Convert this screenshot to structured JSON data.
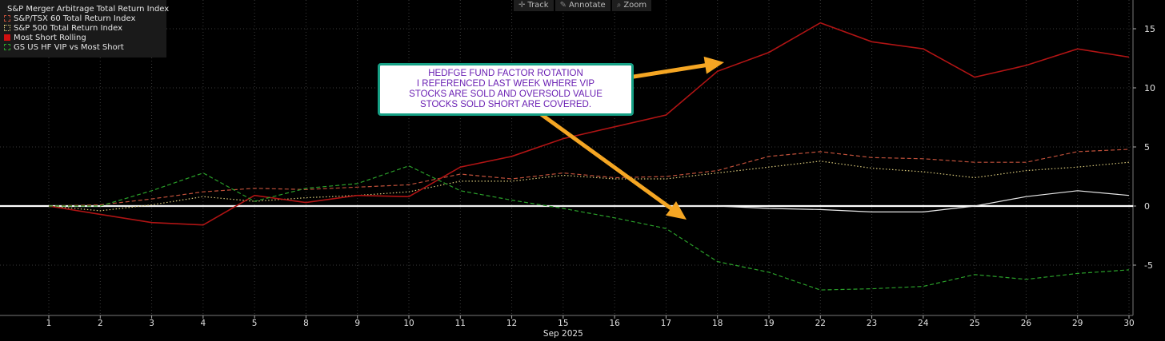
{
  "toolbar": {
    "items": [
      {
        "label": "Track",
        "icon": "crosshair-icon"
      },
      {
        "label": "Annotate",
        "icon": "pencil-icon"
      },
      {
        "label": "Zoom",
        "icon": "magnifier-icon"
      }
    ]
  },
  "annotation": {
    "lines": [
      "HEDFGE FUND FACTOR ROTATION",
      "I REFERENCED LAST WEEK WHERE VIP",
      "STOCKS ARE SOLD AND OVERSOLD VALUE",
      "STOCKS SOLD SHORT ARE COVERED."
    ],
    "border_color": "#16a085",
    "text_color": "#6a1fb3",
    "arrow_color": "#f5a623"
  },
  "chart_data": {
    "type": "line",
    "categories": [
      "1",
      "2",
      "3",
      "4",
      "5",
      "8",
      "9",
      "10",
      "11",
      "12",
      "15",
      "16",
      "17",
      "18",
      "19",
      "22",
      "23",
      "24",
      "25",
      "26",
      "29",
      "30"
    ],
    "xlabel": "Sep 2025",
    "ylabel": "",
    "ylim": [
      -9.5,
      17.5
    ],
    "yticks": [
      -5,
      0,
      5,
      10,
      15
    ],
    "grid": true,
    "legend_position": "top-left",
    "series": [
      {
        "name": "S&P Merger Arbitrage Total Return Index",
        "color": "#e8e8e8",
        "style": "solid",
        "values": [
          0,
          0,
          0,
          0,
          0,
          0,
          0,
          0,
          0,
          0,
          0,
          0,
          0,
          0,
          -0.2,
          -0.3,
          -0.5,
          -0.5,
          0,
          0.8,
          1.3,
          0.9
        ]
      },
      {
        "name": "S&P/TSX 60 Total Return Index",
        "color": "#c0503a",
        "style": "dashed",
        "values": [
          0,
          0.1,
          0.6,
          1.2,
          1.5,
          1.4,
          1.6,
          1.8,
          2.7,
          2.3,
          2.8,
          2.4,
          2.5,
          3.0,
          4.2,
          4.6,
          4.1,
          4.0,
          3.7,
          3.7,
          4.6,
          4.8
        ]
      },
      {
        "name": "S&P 500 Total Return Index",
        "color": "#d8c87a",
        "style": "dotted",
        "values": [
          0,
          -0.4,
          0.1,
          0.8,
          0.4,
          0.7,
          0.9,
          1.2,
          2.1,
          2.1,
          2.6,
          2.3,
          2.3,
          2.8,
          3.3,
          3.8,
          3.2,
          2.9,
          2.4,
          3.0,
          3.3,
          3.7
        ]
      },
      {
        "name": "Most Short Rolling",
        "color": "#b01414",
        "style": "solid",
        "values": [
          0,
          -0.7,
          -1.4,
          -1.6,
          0.9,
          0.3,
          0.9,
          0.8,
          3.3,
          4.2,
          5.7,
          6.7,
          7.7,
          11.4,
          13.0,
          15.5,
          13.9,
          13.3,
          10.9,
          11.9,
          13.3,
          12.6
        ]
      },
      {
        "name": "GS US HF VIP vs Most Short",
        "color": "#2aa02a",
        "style": "dashed",
        "values": [
          0,
          0,
          1.3,
          2.8,
          0.4,
          1.5,
          1.9,
          3.4,
          1.3,
          0.5,
          -0.2,
          -1.0,
          -1.9,
          -4.7,
          -5.6,
          -7.1,
          -7.0,
          -6.8,
          -5.8,
          -6.2,
          -5.7,
          -5.4
        ]
      }
    ]
  }
}
